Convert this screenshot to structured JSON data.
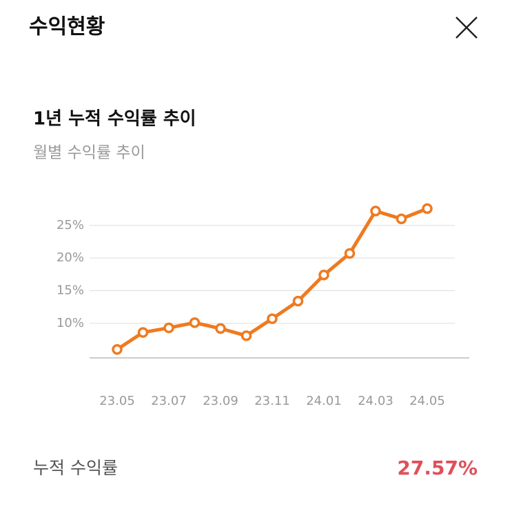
{
  "header": {
    "title": "수익현황"
  },
  "chart_data": {
    "type": "line",
    "title": "1년 누적 수익률 추이",
    "subtitle": "월별 수익률 추이",
    "categories": [
      "23.05",
      null,
      "23.07",
      null,
      "23.09",
      null,
      "23.11",
      null,
      "24.01",
      null,
      "24.03",
      null,
      "24.05"
    ],
    "values": [
      6.0,
      8.6,
      9.3,
      10.1,
      9.2,
      8.1,
      10.7,
      13.4,
      17.4,
      20.7,
      27.2,
      26.0,
      27.57
    ],
    "color": "#ef7a1f",
    "ylim": [
      4.7,
      29
    ],
    "yticks": [
      {
        "value": 10,
        "label": "10%"
      },
      {
        "value": 15,
        "label": "15%"
      },
      {
        "value": 20,
        "label": "20%"
      },
      {
        "value": 25,
        "label": "25%"
      }
    ],
    "grid": true
  },
  "summary": {
    "label": "누적 수익률",
    "value": "27.57%"
  }
}
